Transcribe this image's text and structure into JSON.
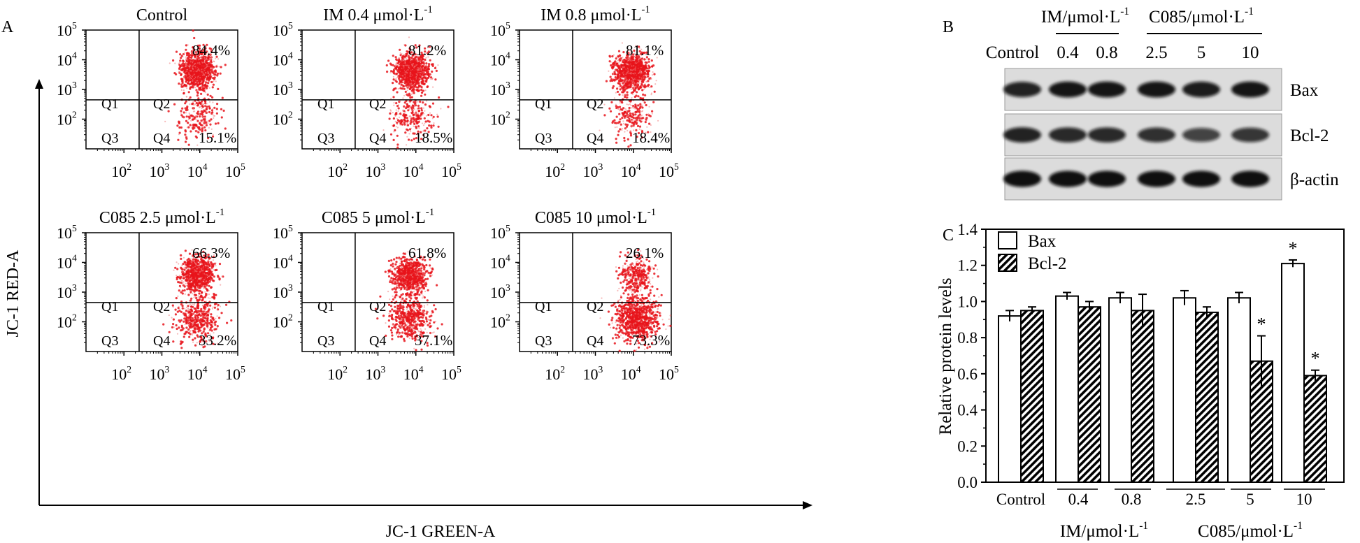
{
  "panel_labels": {
    "a": "A",
    "b": "B",
    "c": "C"
  },
  "colors": {
    "dot": "#e8141b",
    "dot_light": "#f08080",
    "axis": "#000000",
    "blot_bg": "#dcdcdc",
    "band": "#111111"
  },
  "chart_data": [
    {
      "type": "scatter",
      "name": "JC-1 flow cytometry",
      "xlabel": "JC-1 GREEN-A",
      "ylabel": "JC-1 RED-A",
      "x_ticks": [
        "10",
        "10",
        "10",
        "10"
      ],
      "x_tick_exp": [
        "2",
        "3",
        "4",
        "5"
      ],
      "y_ticks": [
        "10",
        "10",
        "10",
        "10"
      ],
      "y_tick_exp": [
        "2",
        "3",
        "4",
        "5"
      ],
      "xlim": [
        10,
        100000
      ],
      "ylim": [
        10,
        100000
      ],
      "quadrant_labels": [
        "Q1",
        "Q2",
        "Q3",
        "Q4"
      ],
      "plots": [
        {
          "title": "Control",
          "title_sup": "",
          "q2": "84.4%",
          "q4": "15.1%",
          "cx": 3.95,
          "cy": 3.45,
          "upper_frac": 0.84
        },
        {
          "title": "IM 0.4 μmol·L",
          "title_sup": "-1",
          "q2": "81.2%",
          "q4": "18.5%",
          "cx": 3.9,
          "cy": 3.4,
          "upper_frac": 0.81
        },
        {
          "title": "IM 0.8 μmol·L",
          "title_sup": "-1",
          "q2": "81.1%",
          "q4": "18.4%",
          "cx": 3.95,
          "cy": 3.4,
          "upper_frac": 0.81
        },
        {
          "title": "C085 2.5 μmol·L",
          "title_sup": "-1",
          "q2": "66.3%",
          "q4": "33.2%",
          "cx": 3.95,
          "cy": 3.4,
          "upper_frac": 0.66
        },
        {
          "title": "C085 5 μmol·L",
          "title_sup": "-1",
          "q2": "61.8%",
          "q4": "37.1%",
          "cx": 3.85,
          "cy": 3.35,
          "upper_frac": 0.62
        },
        {
          "title": "C085 10 μmol·L",
          "title_sup": "-1",
          "q2": "26.1%",
          "q4": "73.3%",
          "cx": 4.1,
          "cy": 3.35,
          "upper_frac": 0.26
        }
      ]
    },
    {
      "type": "table",
      "name": "Western blot",
      "group_headers": [
        {
          "label": "IM/μmol·L",
          "sup": "-1"
        },
        {
          "label": "C085/μmol·L",
          "sup": "-1"
        }
      ],
      "lanes": [
        "Control",
        "0.4",
        "0.8",
        "2.5",
        "5",
        "10"
      ],
      "rows": [
        {
          "protein": "Bax",
          "intensity": [
            0.75,
            0.85,
            0.85,
            0.85,
            0.8,
            0.85
          ]
        },
        {
          "protein": "Bcl-2",
          "intensity": [
            0.75,
            0.7,
            0.7,
            0.65,
            0.5,
            0.6
          ]
        },
        {
          "protein": "β-actin",
          "intensity": [
            0.9,
            0.9,
            0.9,
            0.9,
            0.9,
            0.9
          ]
        }
      ]
    },
    {
      "type": "bar",
      "name": "Relative protein levels",
      "ylabel": "Relative protein levels",
      "ylim": [
        0,
        1.4
      ],
      "y_ticks": [
        "0.0",
        "0.2",
        "0.4",
        "0.6",
        "0.8",
        "1.0",
        "1.2",
        "1.4"
      ],
      "categories": [
        "Control",
        "0.4",
        "0.8",
        "2.5",
        "5",
        "10"
      ],
      "group_labels": [
        {
          "label": "IM/μmol·L",
          "sup": "-1"
        },
        {
          "label": "C085/μmol·L",
          "sup": "-1"
        }
      ],
      "legend": [
        "Bax",
        "Bcl-2"
      ],
      "legend_position": "top-left",
      "series": [
        {
          "name": "Bax",
          "values": [
            0.92,
            1.03,
            1.02,
            1.02,
            1.02,
            1.21
          ],
          "errors": [
            0.03,
            0.02,
            0.03,
            0.04,
            0.03,
            0.02
          ],
          "sig": [
            "",
            "",
            "",
            "",
            "",
            "*"
          ]
        },
        {
          "name": "Bcl-2",
          "values": [
            0.95,
            0.97,
            0.95,
            0.94,
            0.67,
            0.59
          ],
          "errors": [
            0.02,
            0.03,
            0.09,
            0.03,
            0.14,
            0.03
          ],
          "sig": [
            "",
            "",
            "",
            "",
            "*",
            "*"
          ]
        }
      ]
    }
  ]
}
